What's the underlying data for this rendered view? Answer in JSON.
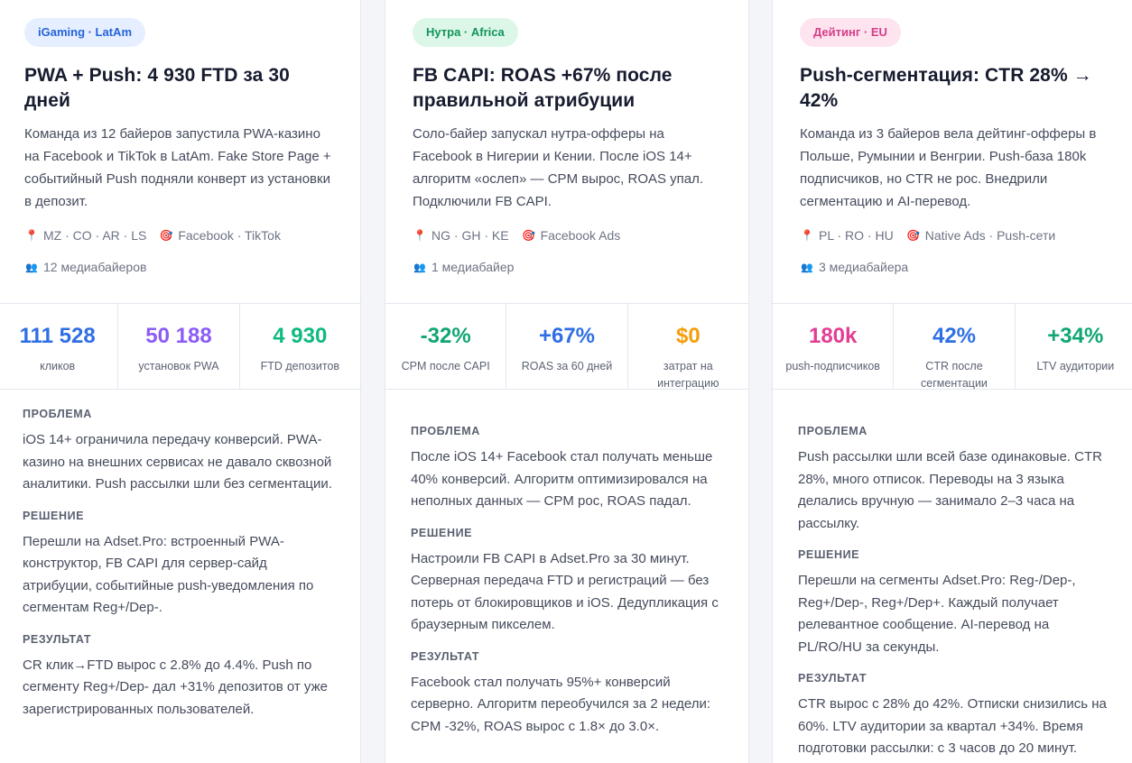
{
  "cards": [
    {
      "tag": "iGaming · LatAm",
      "tag_colors": {
        "bg": "#e6efff",
        "fg": "#2563d9"
      },
      "title": "PWA + Push: 4 930 FTD за 30 дней",
      "description": "Команда из 12 байеров запустила PWA-казино на Facebook и TikTok в LatAm. Fake Store Page + событийный Push подняли конверт из установки в депозит.",
      "geo_icon": "pin-icon",
      "geo": "MZ · CO · AR · LS",
      "sources_icon": "target-icon",
      "sources": "Facebook · TikTok",
      "team_icon": "people-icon",
      "team": "12 медиабайеров",
      "stats": [
        {
          "value": "111 528",
          "label": "кликов",
          "color": "#2f6fe4"
        },
        {
          "value": "50 188",
          "label": "установок PWA",
          "color": "#8b5cf6"
        },
        {
          "value": "4 930",
          "label": "FTD депозитов",
          "color": "#10b981"
        }
      ],
      "problem_heading": "ПРОБЛЕМА",
      "problem": "iOS 14+ ограничила передачу конверсий. PWA-казино на внешних сервисах не давало сквозной аналитики. Push рассылки шли без сегментации.",
      "solution_heading": "РЕШЕНИЕ",
      "solution": "Перешли на Adset.Pro: встроенный PWA-конструктор, FB CAPI для сервер-сайд атрибуции, событийные push-уведомления по сегментам Reg+/Dep-.",
      "result_heading": "РЕЗУЛЬТАТ",
      "result": "CR клик→FTD вырос с 2.8% до 4.4%. Push по сегменту Reg+/Dep- дал +31% депозитов от уже зарегистрированных пользователей."
    },
    {
      "tag": "Нутра · Africa",
      "tag_colors": {
        "bg": "#dcf7e8",
        "fg": "#12945a"
      },
      "title": "FB CAPI: ROAS +67% после правильной атрибуции",
      "description": "Соло-байер запускал нутра-офферы на Facebook в Нигерии и Кении. После iOS 14+ алгоритм «ослеп» — CPM вырос, ROAS упал. Подключили FB CAPI.",
      "geo_icon": "pin-icon",
      "geo": "NG · GH · KE",
      "sources_icon": "target-icon",
      "sources": "Facebook Ads",
      "team_icon": "people-icon",
      "team": "1 медиабайер",
      "stats": [
        {
          "value": "-32%",
          "label": "CPM после CAPI",
          "color": "#10a672"
        },
        {
          "value": "+67%",
          "label": "ROAS за 60 дней",
          "color": "#2f6fe4"
        },
        {
          "value": "$0",
          "label": "затрат на интеграцию",
          "color": "#f59e0b"
        }
      ],
      "problem_heading": "ПРОБЛЕМА",
      "problem": "После iOS 14+ Facebook стал получать меньше 40% конверсий. Алгоритм оптимизировался на неполных данных — CPM рос, ROAS падал.",
      "solution_heading": "РЕШЕНИЕ",
      "solution": "Настроили FB CAPI в Adset.Pro за 30 минут. Серверная передача FTD и регистраций — без потерь от блокировщиков и iOS. Дедупликация с браузерным пикселем.",
      "result_heading": "РЕЗУЛЬТАТ",
      "result": "Facebook стал получать 95%+ конверсий серверно. Алгоритм переобучился за 2 недели: CPM -32%, ROAS вырос с 1.8× до 3.0×."
    },
    {
      "tag": "Дейтинг · EU",
      "tag_colors": {
        "bg": "#fde4ef",
        "fg": "#d63d8a"
      },
      "title": "Push-сегментация: CTR 28% → 42%",
      "description": "Команда из 3 байеров вела дейтинг-офферы в Польше, Румынии и Венгрии. Push-база 180k подписчиков, но CTR не рос. Внедрили сегментацию и AI-перевод.",
      "geo_icon": "pin-icon",
      "geo": "PL · RO · HU",
      "sources_icon": "target-icon",
      "sources": "Native Ads · Push-сети",
      "team_icon": "people-icon",
      "team": "3 медиабайера",
      "stats": [
        {
          "value": "180k",
          "label": "push-подписчиков",
          "color": "#e33d94"
        },
        {
          "value": "42%",
          "label": "CTR после сегментации",
          "color": "#2f6fe4"
        },
        {
          "value": "+34%",
          "label": "LTV аудитории",
          "color": "#10a672"
        }
      ],
      "problem_heading": "ПРОБЛЕМА",
      "problem": "Push рассылки шли всей базе одинаковые. CTR 28%, много отписок. Переводы на 3 языка делались вручную — занимало 2–3 часа на рассылку.",
      "solution_heading": "РЕШЕНИЕ",
      "solution": "Перешли на сегменты Adset.Pro: Reg-/Dep-, Reg+/Dep-, Reg+/Dep+. Каждый получает релевантное сообщение. AI-перевод на PL/RO/HU за секунды.",
      "result_heading": "РЕЗУЛЬТАТ",
      "result": "CTR вырос с 28% до 42%. Отписки снизились на 60%. LTV аудитории за квартал +34%. Время подготовки рассылки: с 3 часов до 20 минут."
    }
  ]
}
